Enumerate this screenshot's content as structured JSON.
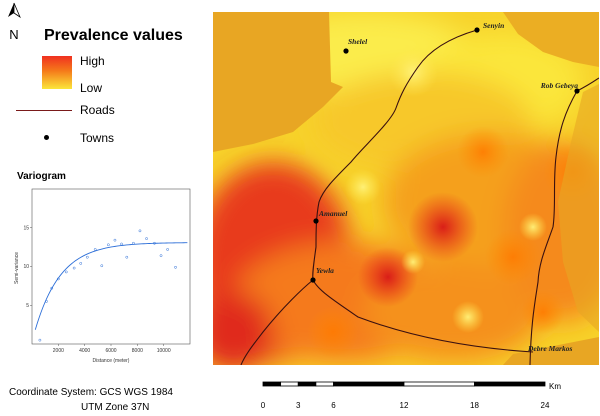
{
  "north_arrow": {
    "letter": "N"
  },
  "legend": {
    "title": "Prevalence values",
    "high": "High",
    "low": "Low",
    "roads": "Roads",
    "towns": "Towns",
    "colors": {
      "high": "#f03020",
      "mid": "#f57a1a",
      "low": "#fbe63a",
      "road": "#7a1a1a"
    }
  },
  "variogram": {
    "title": "Variogram",
    "xlabel": "Distance (meter)",
    "ylabel": "Semi-variance",
    "x_ticks": [
      "2000",
      "4000",
      "6000",
      "8000",
      "10000"
    ],
    "y_ticks": [
      "5",
      "10",
      "15"
    ],
    "xlim": [
      0,
      12000
    ],
    "ylim": [
      0,
      20
    ],
    "points": [
      [
        600,
        0.5
      ],
      [
        1100,
        5.5
      ],
      [
        1500,
        7.2
      ],
      [
        2000,
        8.4
      ],
      [
        2600,
        9.3
      ],
      [
        3200,
        9.8
      ],
      [
        3700,
        10.4
      ],
      [
        4200,
        11.2
      ],
      [
        4800,
        12.2
      ],
      [
        5300,
        10.1
      ],
      [
        5800,
        12.8
      ],
      [
        6300,
        13.4
      ],
      [
        6800,
        12.9
      ],
      [
        7200,
        11.2
      ],
      [
        7700,
        13.0
      ],
      [
        8200,
        14.6
      ],
      [
        8700,
        13.6
      ],
      [
        9300,
        13.0
      ],
      [
        9800,
        11.4
      ],
      [
        10300,
        12.2
      ],
      [
        10900,
        9.9
      ]
    ],
    "model": {
      "nugget": 0.3,
      "sill": 13.1,
      "range": 4500
    }
  },
  "map": {
    "towns": [
      {
        "name": "Senyin",
        "x": 264,
        "y": 18
      },
      {
        "name": "Shelel",
        "x": 133,
        "y": 39
      },
      {
        "name": "Rob Gebeya",
        "x": 364,
        "y": 79
      },
      {
        "name": "Amanuel",
        "x": 103,
        "y": 209
      },
      {
        "name": "Yewla",
        "x": 100,
        "y": 268
      },
      {
        "name": "Debre Markos",
        "x": 320,
        "y": 335
      }
    ]
  },
  "coordinate_system": {
    "line1": "Coordinate System: GCS WGS 1984",
    "line2": "UTM Zone 37N"
  },
  "scale_bar": {
    "labels": [
      "0",
      "3",
      "6",
      "12",
      "18",
      "24"
    ],
    "unit": "Km"
  }
}
